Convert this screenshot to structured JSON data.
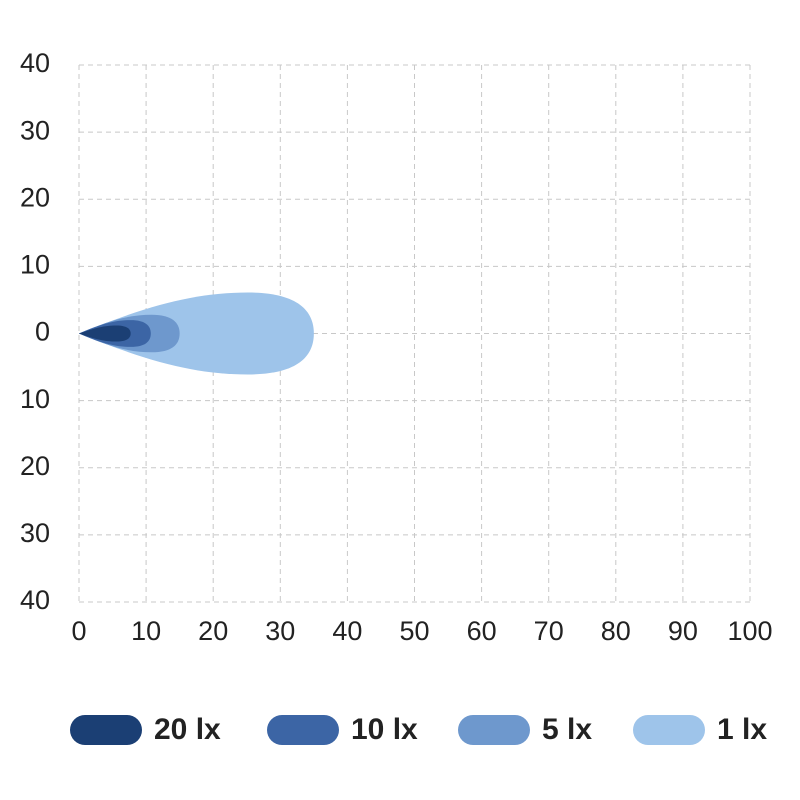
{
  "chart_data": {
    "type": "beam",
    "xlim": [
      0,
      100
    ],
    "xticks": [
      0,
      10,
      20,
      30,
      40,
      50,
      60,
      70,
      80,
      90,
      100
    ],
    "ylim": [
      -40,
      40
    ],
    "yticks": [
      {
        "value": 40,
        "label": "40"
      },
      {
        "value": 30,
        "label": "30"
      },
      {
        "value": 20,
        "label": "20"
      },
      {
        "value": 10,
        "label": "10"
      },
      {
        "value": 0,
        "label": "0"
      },
      {
        "value": -10,
        "label": "10"
      },
      {
        "value": -20,
        "label": "20"
      },
      {
        "value": -30,
        "label": "30"
      },
      {
        "value": -40,
        "label": "40"
      }
    ],
    "grid": true,
    "series": [
      {
        "name": "20 lx",
        "color": "#1b3f74",
        "reach": 7.7,
        "half_width": 1.2
      },
      {
        "name": "10 lx",
        "color": "#3c65a5",
        "reach": 10.7,
        "half_width": 2
      },
      {
        "name": "5 lx",
        "color": "#6e98cd",
        "reach": 15,
        "half_width": 2.8
      },
      {
        "name": "1 lx",
        "color": "#9ec4ea",
        "reach": 35,
        "half_width": 6.1
      }
    ]
  }
}
